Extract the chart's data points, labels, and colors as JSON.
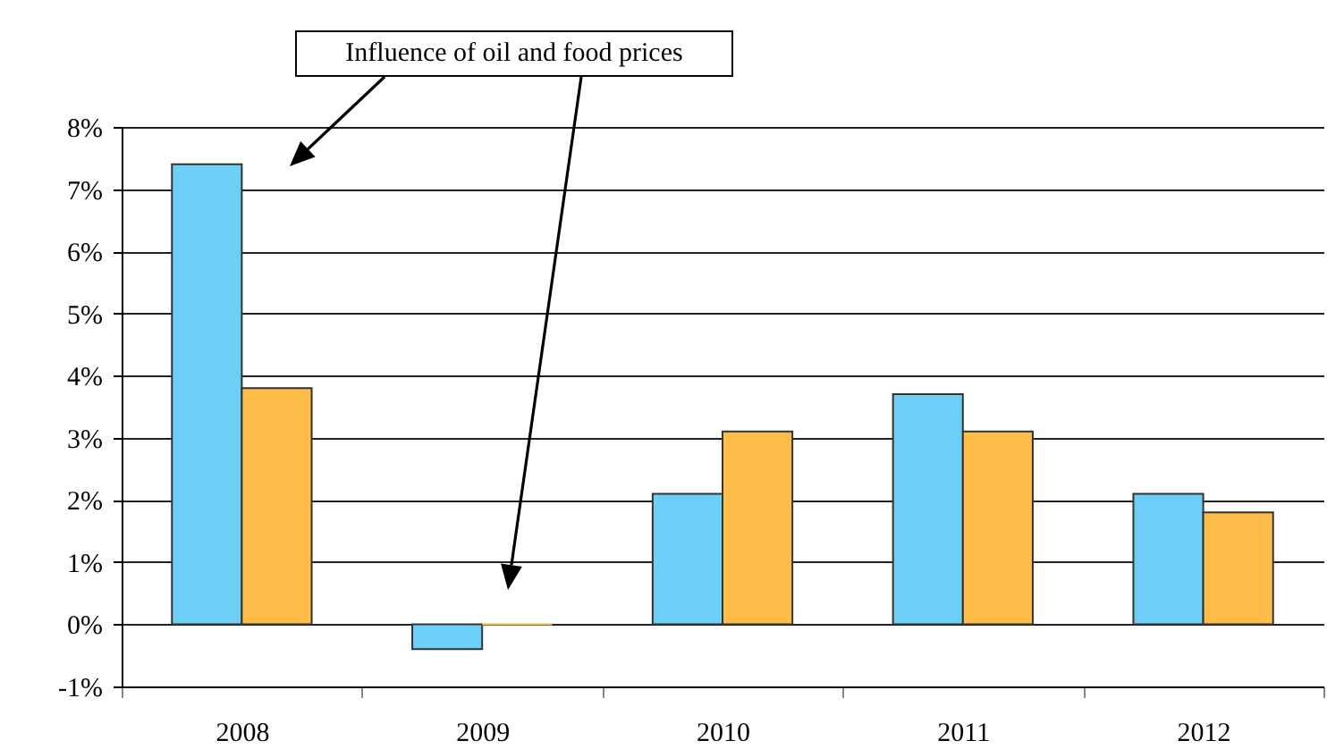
{
  "chart_data": {
    "type": "bar",
    "annotations": [
      "Influence of oil and food prices"
    ],
    "categories": [
      "2008",
      "2009",
      "2010",
      "2011",
      "2012"
    ],
    "series": [
      {
        "color": "#6dcff6",
        "values": [
          7.4,
          -0.4,
          2.1,
          3.7,
          2.1
        ]
      },
      {
        "color": "#fdbd48",
        "values": [
          3.8,
          0.0,
          3.1,
          3.1,
          1.8
        ]
      }
    ],
    "ylim": [
      -1,
      8
    ],
    "yticks": [
      {
        "value": -1,
        "label": "-1%"
      },
      {
        "value": 0,
        "label": "0%"
      },
      {
        "value": 1,
        "label": "1%"
      },
      {
        "value": 2,
        "label": "2%"
      },
      {
        "value": 3,
        "label": "3%"
      },
      {
        "value": 4,
        "label": "4%"
      },
      {
        "value": 5,
        "label": "5%"
      },
      {
        "value": 6,
        "label": "6%"
      },
      {
        "value": 7,
        "label": "7%"
      },
      {
        "value": 8,
        "label": "8%"
      }
    ],
    "grid": "y",
    "legend": false
  }
}
